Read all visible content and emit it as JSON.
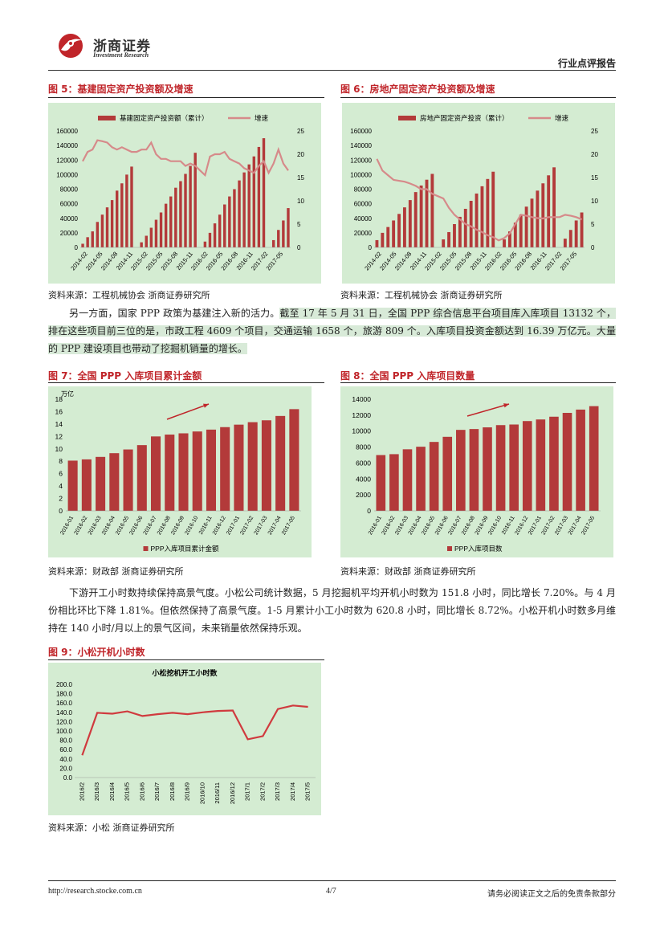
{
  "header": {
    "brand_name": "浙商证券",
    "brand_sub": "Investment Research",
    "report_type": "行业点评报告"
  },
  "figures": {
    "fig5": {
      "title": "图 5：基建固定资产投资额及增速",
      "source": "资料来源：工程机械协会 浙商证券研究所"
    },
    "fig6": {
      "title": "图 6：房地产固定资产投资额及增速",
      "source": "资料来源：工程机械协会 浙商证券研究所"
    },
    "fig7": {
      "title": "图 7：全国 PPP 入库项目累计金额",
      "source": "资料来源：财政部 浙商证券研究所"
    },
    "fig8": {
      "title": "图 8：全国 PPP 入库项目数量",
      "source": "资料来源：财政部 浙商证券研究所"
    },
    "fig9": {
      "title": "图 9：小松开机小时数",
      "source": "资料来源：小松 浙商证券研究所"
    }
  },
  "paragraph1": {
    "plain": "另一方面，国家 PPP 政策为基建注入新的活力。",
    "highlight": "截至 17 年 5 月 31 日，全国 PPP 综合信息平台项目库入库项目 13132 个，排在这些项目前三位的是，市政工程 4609 个项目，交通运输 1658 个，旅游 809 个。入库项目投资金额达到 16.39 万亿元。大量的 PPP 建设项目也带动了挖掘机销量的增长。"
  },
  "paragraph2": "下游开工小时数持续保持高景气度。小松公司统计数据，5 月挖掘机平均开机小时数为 151.8 小时，同比增长 7.20%。与 4 月份相比环比下降 1.81%。但依然保持了高景气度。1-5 月累计小工小时数为 620.8 小时，同比增长 8.72%。小松开机小时数多月维持在 140 小时/月以上的景气区间，未来销量依然保持乐观。",
  "footer": {
    "url": "http://research.stocke.com.cn",
    "page": "4/7",
    "disclaimer": "请务必阅读正文之后的免责条款部分"
  },
  "colors": {
    "bar": "#b33a3a",
    "line": "#d68a8a",
    "line9": "#d03a3e",
    "bg": "#d4ecd2",
    "title": "#c0252a",
    "arrow": "#c0252a"
  },
  "chart_data": [
    {
      "id": "fig5",
      "type": "bar",
      "legend": [
        "基建固定资产投资额（累计）",
        "增速"
      ],
      "x_ticks": [
        "2014-02",
        "2014-05",
        "2014-08",
        "2014-11",
        "2015-02",
        "2015-05",
        "2015-08",
        "2015-11",
        "2016-02",
        "2016-05",
        "2016-08",
        "2016-11",
        "2017-02",
        "2017-05"
      ],
      "ylim": [
        0,
        160000
      ],
      "yticks": [
        0,
        20000,
        40000,
        60000,
        80000,
        100000,
        120000,
        140000,
        160000
      ],
      "y2lim": [
        0,
        25
      ],
      "y2ticks": [
        0,
        5,
        10,
        15,
        20,
        25
      ],
      "series": [
        {
          "name": "基建固定资产投资额（累计）",
          "type": "bar",
          "values": [
            5000,
            14000,
            22000,
            35000,
            45000,
            55000,
            65000,
            78000,
            88000,
            100000,
            111000,
            0,
            7000,
            16000,
            27000,
            38000,
            48000,
            60000,
            70000,
            82000,
            91000,
            101000,
            112000,
            130000,
            0,
            8000,
            20000,
            33000,
            45000,
            59000,
            70000,
            80000,
            92000,
            103000,
            114000,
            125000,
            138000,
            150000,
            0,
            10000,
            24000,
            37000,
            54000
          ]
        },
        {
          "name": "增速",
          "type": "line",
          "values": [
            18.5,
            20.5,
            21,
            23,
            22.8,
            22.5,
            21.5,
            21,
            21.5,
            21,
            20.5,
            20.5,
            21,
            21,
            22.5,
            20,
            19,
            19,
            18.5,
            18.5,
            18.5,
            17.5,
            18,
            17.5,
            16.5,
            15.5,
            19.5,
            20,
            20,
            20.5,
            19,
            18.5,
            18,
            17,
            16.5,
            16,
            17.5,
            18.5,
            16,
            18,
            21,
            18,
            16.5
          ]
        }
      ]
    },
    {
      "id": "fig6",
      "type": "bar",
      "legend": [
        "房地产固定资产投资（累计）",
        "增速"
      ],
      "x_ticks": [
        "2014-02",
        "2014-05",
        "2014-08",
        "2014-11",
        "2015-02",
        "2015-05",
        "2015-08",
        "2015-11",
        "2016-02",
        "2016-05",
        "2016-08",
        "2016-11",
        "2017-02",
        "2017-05"
      ],
      "ylim": [
        0,
        160000
      ],
      "yticks": [
        0,
        20000,
        40000,
        60000,
        80000,
        100000,
        120000,
        140000,
        160000
      ],
      "y2lim": [
        0,
        25
      ],
      "y2ticks": [
        0,
        5,
        10,
        15,
        20,
        25
      ],
      "series": [
        {
          "name": "房地产固定资产投资（累计）",
          "type": "bar",
          "values": [
            10000,
            20000,
            28000,
            37000,
            46000,
            55000,
            65000,
            76000,
            85000,
            93000,
            101000,
            0,
            11000,
            21000,
            32000,
            42000,
            53000,
            64000,
            74000,
            84000,
            94000,
            104000,
            0,
            11000,
            22000,
            34000,
            45000,
            56000,
            67000,
            78000,
            88000,
            99000,
            110000,
            0,
            12000,
            24000,
            37000,
            48000
          ]
        },
        {
          "name": "增速",
          "type": "line",
          "values": [
            19,
            16.5,
            15.5,
            14.5,
            14.3,
            14.1,
            13.7,
            13.2,
            12.5,
            12.5,
            11.5,
            11,
            10.5,
            8.5,
            7,
            6,
            5,
            4.5,
            3.8,
            3.3,
            2.6,
            2.2,
            1.5,
            2,
            3,
            5,
            7,
            6.8,
            6.5,
            6.3,
            6.2,
            6.5,
            6.5,
            6.5,
            7,
            6.8,
            6.5,
            6
          ]
        }
      ]
    },
    {
      "id": "fig7",
      "type": "bar",
      "unit": "万亿",
      "legend": [
        "PPP入库项目累计金额"
      ],
      "categories": [
        "2016-01",
        "2016-02",
        "2016-03",
        "2016-04",
        "2016-05",
        "2016-06",
        "2016-07",
        "2016-08",
        "2016-09",
        "2016-10",
        "2016-11",
        "2016-12",
        "2017-01",
        "2017-02",
        "2017-03",
        "2017-04",
        "2017-05"
      ],
      "ylim": [
        0,
        18
      ],
      "yticks": [
        0,
        2,
        4,
        6,
        8,
        10,
        12,
        14,
        16,
        18
      ],
      "series": [
        {
          "name": "PPP入库项目累计金额",
          "values": [
            8.1,
            8.3,
            8.7,
            9.3,
            9.9,
            10.6,
            12.0,
            12.3,
            12.5,
            12.8,
            13.1,
            13.5,
            13.9,
            14.3,
            14.6,
            15.3,
            16.4
          ]
        }
      ]
    },
    {
      "id": "fig8",
      "type": "bar",
      "legend": [
        "PPP入库项目数"
      ],
      "categories": [
        "2016-01",
        "2016-02",
        "2016-03",
        "2016-04",
        "2016-05",
        "2016-06",
        "2016-07",
        "2016-08",
        "2016-09",
        "2016-10",
        "2016-11",
        "2016-12",
        "2017-01",
        "2017-02",
        "2017-03",
        "2017-04",
        "2017-05"
      ],
      "ylim": [
        0,
        14000
      ],
      "yticks": [
        0,
        2000,
        4000,
        6000,
        8000,
        10000,
        12000,
        14000
      ],
      "series": [
        {
          "name": "PPP入库项目数",
          "values": [
            6997,
            7110,
            7721,
            8043,
            8644,
            9285,
            10155,
            10261,
            10471,
            10753,
            10828,
            11260,
            11461,
            11807,
            12287,
            12700,
            13132
          ]
        }
      ]
    },
    {
      "id": "fig9",
      "type": "line",
      "title": "小松挖机开工小时数",
      "categories": [
        "2016/2",
        "2016/3",
        "2016/4",
        "2016/5",
        "2016/6",
        "2016/7",
        "2016/8",
        "2016/9",
        "2016/10",
        "2016/11",
        "2016/12",
        "2017/1",
        "2017/2",
        "2017/3",
        "2017/4",
        "2017/5"
      ],
      "ylim": [
        0,
        200
      ],
      "yticks": [
        "0.0",
        "20.0",
        "40.0",
        "60.0",
        "80.0",
        "100.0",
        "120.0",
        "140.0",
        "160.0",
        "180.0",
        "200.0"
      ],
      "series": [
        {
          "name": "开机小时数",
          "values": [
            48,
            139,
            137,
            142,
            132,
            136,
            139,
            136,
            140,
            143,
            144,
            82,
            89,
            147,
            154.6,
            151.8
          ]
        }
      ]
    }
  ]
}
